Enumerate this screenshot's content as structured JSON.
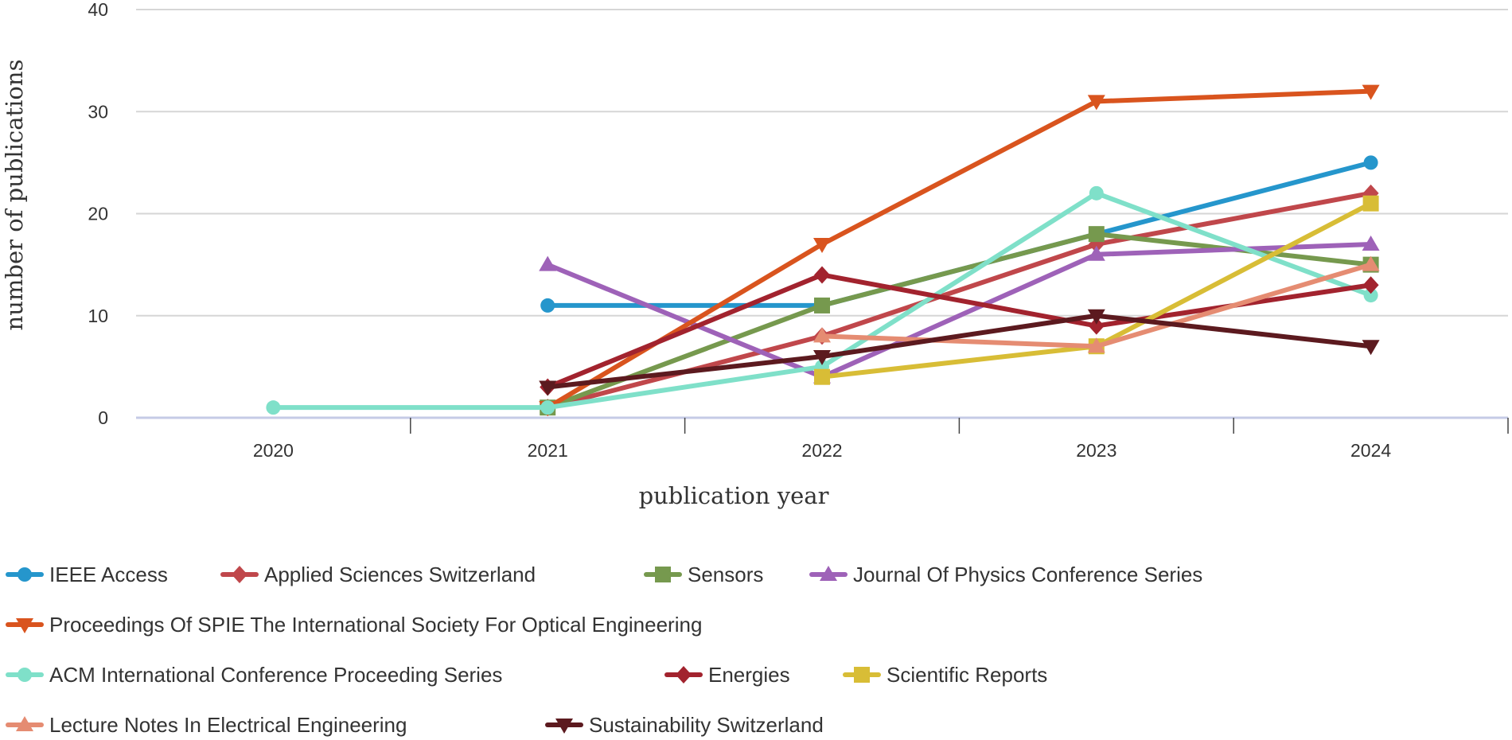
{
  "chart_data": {
    "type": "line",
    "title": "",
    "xlabel": "publication year",
    "ylabel": "number of publications",
    "categories": [
      "2020",
      "2021",
      "2022",
      "2023",
      "2024"
    ],
    "ylim": [
      0,
      40
    ],
    "yticks": [
      "0",
      "10",
      "20",
      "30",
      "40"
    ],
    "grid": true,
    "legend_position": "bottom",
    "series": [
      {
        "name": "IEEE Access",
        "color": "#2596cc",
        "marker": "circle",
        "values": [
          null,
          11,
          11,
          18,
          25
        ]
      },
      {
        "name": "Applied Sciences Switzerland",
        "color": "#c0474b",
        "marker": "diamond",
        "values": [
          null,
          1,
          8,
          17,
          22
        ]
      },
      {
        "name": "Sensors",
        "color": "#76994e",
        "marker": "square",
        "values": [
          null,
          1,
          11,
          18,
          15
        ]
      },
      {
        "name": "Journal Of Physics Conference Series",
        "color": "#9e62b8",
        "marker": "triangle-up",
        "values": [
          null,
          15,
          4,
          16,
          17
        ]
      },
      {
        "name": "Proceedings Of SPIE The International Society For Optical Engineering",
        "color": "#d9541e",
        "marker": "triangle-down",
        "values": [
          null,
          1,
          17,
          31,
          32
        ]
      },
      {
        "name": "ACM International Conference Proceeding Series",
        "color": "#7fe0c9",
        "marker": "circle",
        "values": [
          1,
          1,
          5,
          22,
          12
        ]
      },
      {
        "name": "Energies",
        "color": "#a2232e",
        "marker": "diamond",
        "values": [
          null,
          3,
          14,
          9,
          13
        ]
      },
      {
        "name": "Scientific Reports",
        "color": "#d8bd36",
        "marker": "square",
        "values": [
          null,
          null,
          4,
          7,
          21
        ]
      },
      {
        "name": "Lecture Notes In Electrical Engineering",
        "color": "#e58c72",
        "marker": "triangle-up",
        "values": [
          null,
          null,
          8,
          7,
          15
        ]
      },
      {
        "name": "Sustainability Switzerland",
        "color": "#5c1a1f",
        "marker": "triangle-down",
        "values": [
          null,
          3,
          6,
          10,
          7
        ]
      }
    ]
  }
}
